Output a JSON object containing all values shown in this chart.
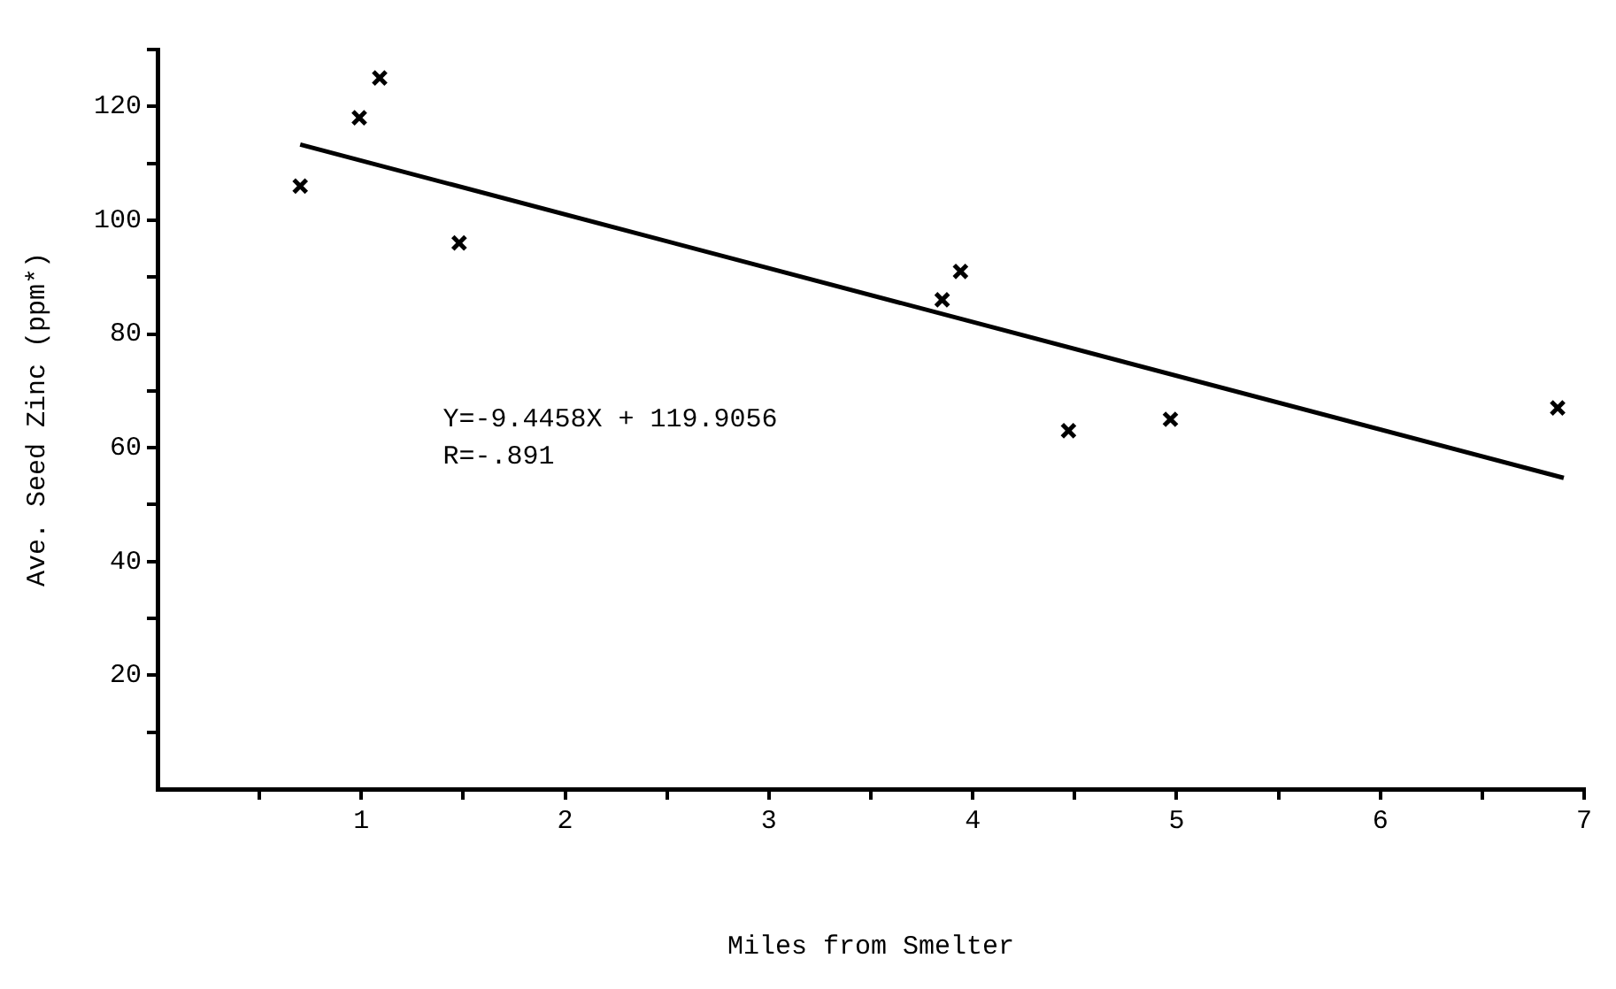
{
  "chart_data": {
    "type": "scatter",
    "xlabel": "Miles from Smelter",
    "ylabel": "Ave. Seed Zinc (ppm*)",
    "xlim": [
      0,
      7
    ],
    "xticks": [
      {
        "value": 0.5,
        "label": null
      },
      1,
      {
        "value": 1.5,
        "label": null
      },
      2,
      {
        "value": 2.5,
        "label": null
      },
      3,
      {
        "value": 3.5,
        "label": null
      },
      4,
      {
        "value": 4.5,
        "label": null
      },
      5,
      {
        "value": 5.5,
        "label": null
      },
      6,
      {
        "value": 6.5,
        "label": null
      },
      7
    ],
    "ylim": [
      0,
      130
    ],
    "yticks": [
      {
        "value": 10,
        "label": null
      },
      20,
      {
        "value": 30,
        "label": null
      },
      40,
      {
        "value": 50,
        "label": null
      },
      60,
      {
        "value": 70,
        "label": null
      },
      80,
      {
        "value": 90,
        "label": null
      },
      100,
      {
        "value": 110,
        "label": null
      },
      120,
      {
        "value": 130,
        "label": null
      }
    ],
    "grid": false,
    "marker": "cross",
    "series": [
      {
        "type": "scatter",
        "color": "#000000",
        "x": [
          0.7,
          0.99,
          1.09,
          1.48,
          3.85,
          3.94,
          4.47,
          4.97,
          6.87
        ],
        "values": [
          106,
          118,
          125,
          96,
          86,
          91,
          63,
          65,
          67
        ]
      },
      {
        "type": "line",
        "color": "#000000",
        "x": [
          0.7,
          6.9
        ],
        "values": [
          113.3,
          54.7
        ],
        "marker": "none",
        "line_style": "solid"
      }
    ],
    "annotations": [
      "Y=-9.4458X + 119.9056",
      "R=-.891"
    ]
  }
}
